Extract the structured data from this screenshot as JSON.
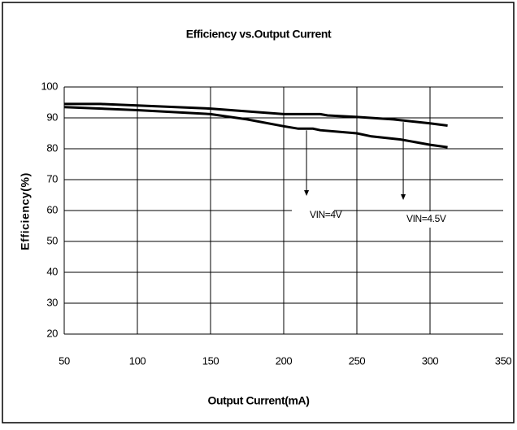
{
  "chart_data": {
    "type": "line",
    "title": "Efficiency vs.Output Current",
    "x_label": "Output Current(mA)",
    "y_label": "Efficiency(%)",
    "xlim": [
      50,
      350
    ],
    "xticks": [
      50,
      100,
      150,
      200,
      250,
      300,
      350
    ],
    "ylim": [
      20,
      100
    ],
    "yticks": [
      20,
      30,
      40,
      50,
      60,
      70,
      80,
      90,
      100
    ],
    "grid": true,
    "series": [
      {
        "name": "VIN=4.5V",
        "color": "#000000",
        "x": [
          50,
          75,
          100,
          150,
          200,
          225,
          230,
          250,
          275,
          300,
          312
        ],
        "values": [
          94.5,
          94.5,
          94,
          93,
          91.2,
          91.2,
          90.8,
          90.3,
          89.5,
          88.2,
          87.5
        ]
      },
      {
        "name": "VIN=4V",
        "color": "#000000",
        "x": [
          50,
          100,
          150,
          175,
          200,
          210,
          220,
          225,
          250,
          260,
          280,
          300,
          312
        ],
        "values": [
          93.5,
          92.5,
          91.2,
          89.5,
          87.3,
          86.5,
          86.5,
          86,
          85,
          84,
          83,
          81.3,
          80.5
        ]
      }
    ]
  }
}
